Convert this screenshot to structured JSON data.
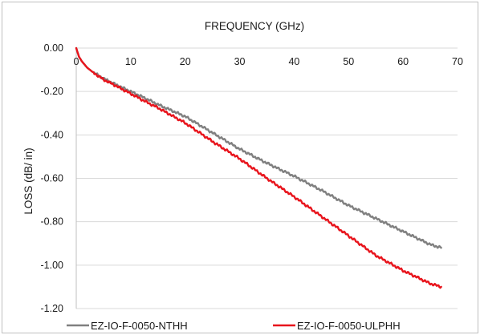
{
  "chart_data": {
    "type": "line",
    "xlabel": "FREQUENCY (GHz)",
    "ylabel": "LOSS (dB/ in)",
    "xlim": [
      0,
      70
    ],
    "ylim": [
      -1.2,
      0.0
    ],
    "x_ticks": [
      "0",
      "10",
      "20",
      "30",
      "40",
      "50",
      "60",
      "70"
    ],
    "y_ticks": [
      "0.00",
      "-0.20",
      "-0.40",
      "-0.60",
      "-0.80",
      "-1.00",
      "-1.20"
    ],
    "x_axis_position": "top",
    "grid": "horizontal",
    "legend_position": "bottom",
    "series": [
      {
        "name": "EZ-IO-F-0050-NTHH",
        "color": "#808080",
        "x": [
          0,
          0.5,
          1,
          2,
          3,
          5,
          7,
          10,
          13,
          15,
          20,
          25,
          30,
          35,
          40,
          45,
          50,
          55,
          60,
          65,
          67
        ],
        "y": [
          0.0,
          -0.04,
          -0.06,
          -0.09,
          -0.11,
          -0.14,
          -0.165,
          -0.2,
          -0.235,
          -0.26,
          -0.315,
          -0.39,
          -0.465,
          -0.53,
          -0.59,
          -0.655,
          -0.725,
          -0.785,
          -0.845,
          -0.905,
          -0.92
        ]
      },
      {
        "name": "EZ-IO-F-0050-ULPHH",
        "color": "#e8141c",
        "x": [
          0,
          0.5,
          1,
          2,
          3,
          5,
          7,
          10,
          13,
          15,
          20,
          25,
          30,
          35,
          40,
          45,
          50,
          55,
          60,
          65,
          67
        ],
        "y": [
          0.0,
          -0.04,
          -0.06,
          -0.09,
          -0.11,
          -0.145,
          -0.17,
          -0.21,
          -0.25,
          -0.275,
          -0.345,
          -0.43,
          -0.51,
          -0.6,
          -0.685,
          -0.775,
          -0.865,
          -0.955,
          -1.025,
          -1.085,
          -1.1
        ]
      }
    ]
  }
}
